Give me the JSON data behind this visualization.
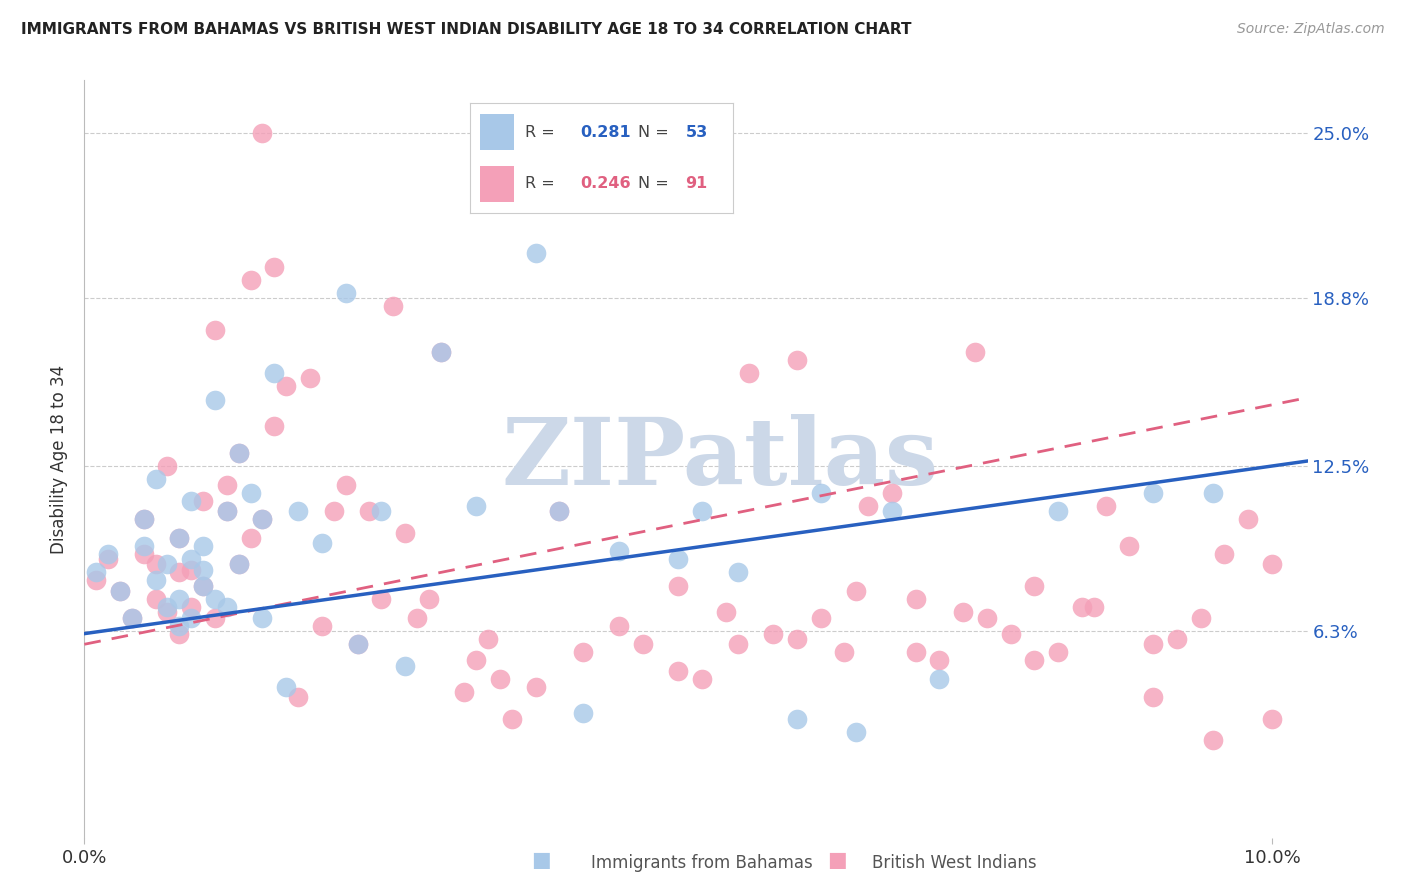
{
  "title": "IMMIGRANTS FROM BAHAMAS VS BRITISH WEST INDIAN DISABILITY AGE 18 TO 34 CORRELATION CHART",
  "source": "Source: ZipAtlas.com",
  "ylabel": "Disability Age 18 to 34",
  "ytick_labels": [
    "6.3%",
    "12.5%",
    "18.8%",
    "25.0%"
  ],
  "ytick_values": [
    0.063,
    0.125,
    0.188,
    0.25
  ],
  "xlim": [
    0.0,
    0.103
  ],
  "ylim": [
    -0.015,
    0.27
  ],
  "label1": "Immigrants from Bahamas",
  "label2": "British West Indians",
  "color1": "#a8c8e8",
  "color2": "#f4a0b8",
  "line_color1": "#2860c0",
  "line_color2": "#e06080",
  "watermark_text": "ZIPatlas",
  "watermark_color": "#ccd8e8",
  "background": "#ffffff",
  "blue_intercept": 0.062,
  "blue_slope": 0.63,
  "pink_intercept": 0.058,
  "pink_slope": 0.9,
  "blue_points": [
    [
      0.001,
      0.085
    ],
    [
      0.002,
      0.092
    ],
    [
      0.003,
      0.078
    ],
    [
      0.004,
      0.068
    ],
    [
      0.005,
      0.095
    ],
    [
      0.005,
      0.105
    ],
    [
      0.006,
      0.082
    ],
    [
      0.006,
      0.12
    ],
    [
      0.007,
      0.072
    ],
    [
      0.007,
      0.088
    ],
    [
      0.008,
      0.065
    ],
    [
      0.008,
      0.098
    ],
    [
      0.008,
      0.075
    ],
    [
      0.009,
      0.09
    ],
    [
      0.009,
      0.068
    ],
    [
      0.009,
      0.112
    ],
    [
      0.01,
      0.08
    ],
    [
      0.01,
      0.086
    ],
    [
      0.01,
      0.095
    ],
    [
      0.011,
      0.15
    ],
    [
      0.011,
      0.075
    ],
    [
      0.012,
      0.108
    ],
    [
      0.012,
      0.072
    ],
    [
      0.013,
      0.13
    ],
    [
      0.013,
      0.088
    ],
    [
      0.014,
      0.115
    ],
    [
      0.015,
      0.068
    ],
    [
      0.015,
      0.105
    ],
    [
      0.016,
      0.16
    ],
    [
      0.017,
      0.042
    ],
    [
      0.018,
      0.108
    ],
    [
      0.02,
      0.096
    ],
    [
      0.022,
      0.19
    ],
    [
      0.023,
      0.058
    ],
    [
      0.025,
      0.108
    ],
    [
      0.027,
      0.05
    ],
    [
      0.03,
      0.168
    ],
    [
      0.033,
      0.11
    ],
    [
      0.038,
      0.205
    ],
    [
      0.04,
      0.108
    ],
    [
      0.042,
      0.032
    ],
    [
      0.045,
      0.093
    ],
    [
      0.05,
      0.09
    ],
    [
      0.052,
      0.108
    ],
    [
      0.055,
      0.085
    ],
    [
      0.06,
      0.03
    ],
    [
      0.062,
      0.115
    ],
    [
      0.065,
      0.025
    ],
    [
      0.068,
      0.108
    ],
    [
      0.072,
      0.045
    ],
    [
      0.082,
      0.108
    ],
    [
      0.09,
      0.115
    ],
    [
      0.095,
      0.115
    ]
  ],
  "pink_points": [
    [
      0.001,
      0.082
    ],
    [
      0.002,
      0.09
    ],
    [
      0.003,
      0.078
    ],
    [
      0.004,
      0.068
    ],
    [
      0.005,
      0.092
    ],
    [
      0.005,
      0.105
    ],
    [
      0.006,
      0.075
    ],
    [
      0.006,
      0.088
    ],
    [
      0.007,
      0.07
    ],
    [
      0.007,
      0.125
    ],
    [
      0.008,
      0.085
    ],
    [
      0.008,
      0.062
    ],
    [
      0.008,
      0.098
    ],
    [
      0.009,
      0.072
    ],
    [
      0.009,
      0.086
    ],
    [
      0.01,
      0.08
    ],
    [
      0.01,
      0.112
    ],
    [
      0.011,
      0.068
    ],
    [
      0.011,
      0.176
    ],
    [
      0.012,
      0.118
    ],
    [
      0.012,
      0.108
    ],
    [
      0.013,
      0.088
    ],
    [
      0.013,
      0.13
    ],
    [
      0.014,
      0.098
    ],
    [
      0.014,
      0.195
    ],
    [
      0.015,
      0.105
    ],
    [
      0.015,
      0.25
    ],
    [
      0.016,
      0.14
    ],
    [
      0.016,
      0.2
    ],
    [
      0.017,
      0.155
    ],
    [
      0.018,
      0.038
    ],
    [
      0.019,
      0.158
    ],
    [
      0.02,
      0.065
    ],
    [
      0.021,
      0.108
    ],
    [
      0.022,
      0.118
    ],
    [
      0.023,
      0.058
    ],
    [
      0.024,
      0.108
    ],
    [
      0.025,
      0.075
    ],
    [
      0.026,
      0.185
    ],
    [
      0.027,
      0.1
    ],
    [
      0.028,
      0.068
    ],
    [
      0.029,
      0.075
    ],
    [
      0.03,
      0.168
    ],
    [
      0.032,
      0.04
    ],
    [
      0.033,
      0.052
    ],
    [
      0.034,
      0.06
    ],
    [
      0.035,
      0.045
    ],
    [
      0.036,
      0.03
    ],
    [
      0.038,
      0.042
    ],
    [
      0.04,
      0.108
    ],
    [
      0.042,
      0.055
    ],
    [
      0.045,
      0.065
    ],
    [
      0.047,
      0.058
    ],
    [
      0.05,
      0.08
    ],
    [
      0.052,
      0.045
    ],
    [
      0.054,
      0.07
    ],
    [
      0.056,
      0.16
    ],
    [
      0.058,
      0.062
    ],
    [
      0.06,
      0.06
    ],
    [
      0.062,
      0.068
    ],
    [
      0.064,
      0.055
    ],
    [
      0.066,
      0.11
    ],
    [
      0.068,
      0.115
    ],
    [
      0.07,
      0.075
    ],
    [
      0.072,
      0.052
    ],
    [
      0.074,
      0.07
    ],
    [
      0.076,
      0.068
    ],
    [
      0.078,
      0.062
    ],
    [
      0.08,
      0.08
    ],
    [
      0.082,
      0.055
    ],
    [
      0.084,
      0.072
    ],
    [
      0.086,
      0.11
    ],
    [
      0.088,
      0.095
    ],
    [
      0.09,
      0.058
    ],
    [
      0.092,
      0.06
    ],
    [
      0.094,
      0.068
    ],
    [
      0.096,
      0.092
    ],
    [
      0.098,
      0.105
    ],
    [
      0.1,
      0.088
    ],
    [
      0.05,
      0.048
    ],
    [
      0.055,
      0.058
    ],
    [
      0.06,
      0.165
    ],
    [
      0.065,
      0.078
    ],
    [
      0.07,
      0.055
    ],
    [
      0.075,
      0.168
    ],
    [
      0.08,
      0.052
    ],
    [
      0.085,
      0.072
    ],
    [
      0.09,
      0.038
    ],
    [
      0.095,
      0.022
    ],
    [
      0.1,
      0.03
    ]
  ]
}
